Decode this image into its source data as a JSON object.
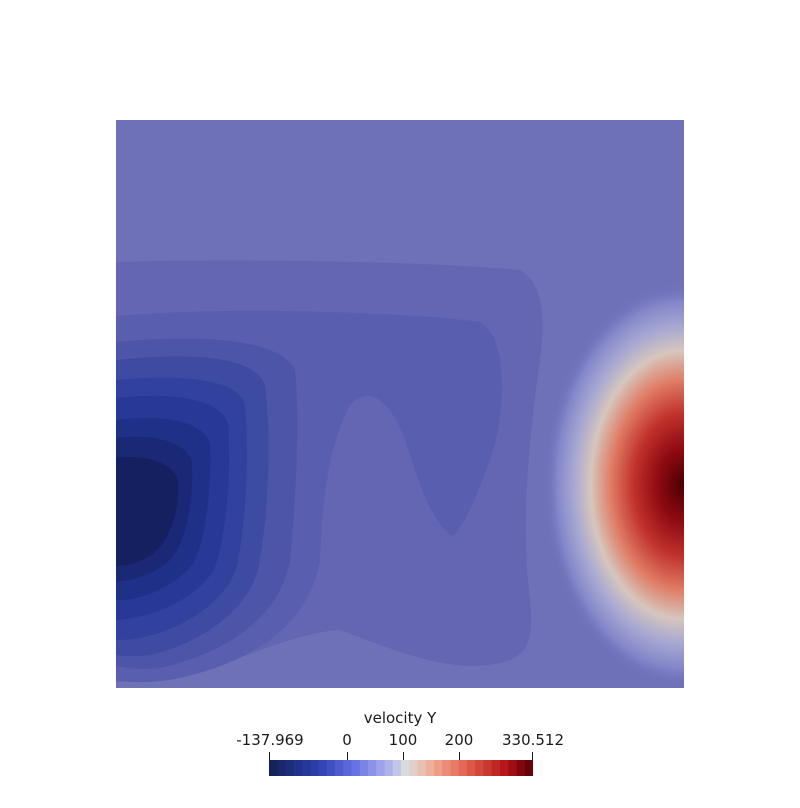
{
  "scalar_bar": {
    "title": "velocity Y",
    "min_label": "-137.969",
    "max_label": "330.512",
    "min": -137.969,
    "max": 330.512,
    "ticks": [
      {
        "label": "0",
        "value": 0
      },
      {
        "label": "100",
        "value": 100
      },
      {
        "label": "200",
        "value": 200
      }
    ],
    "color_map": "Cool to Warm (discrete)",
    "num_bands": 32
  },
  "colors": {
    "low": "#141f55",
    "mid_low": "#6b6fbb",
    "neutral": "#dddddd",
    "high": "#b21218",
    "max": "#5a0006",
    "background": "#ffffff"
  }
}
